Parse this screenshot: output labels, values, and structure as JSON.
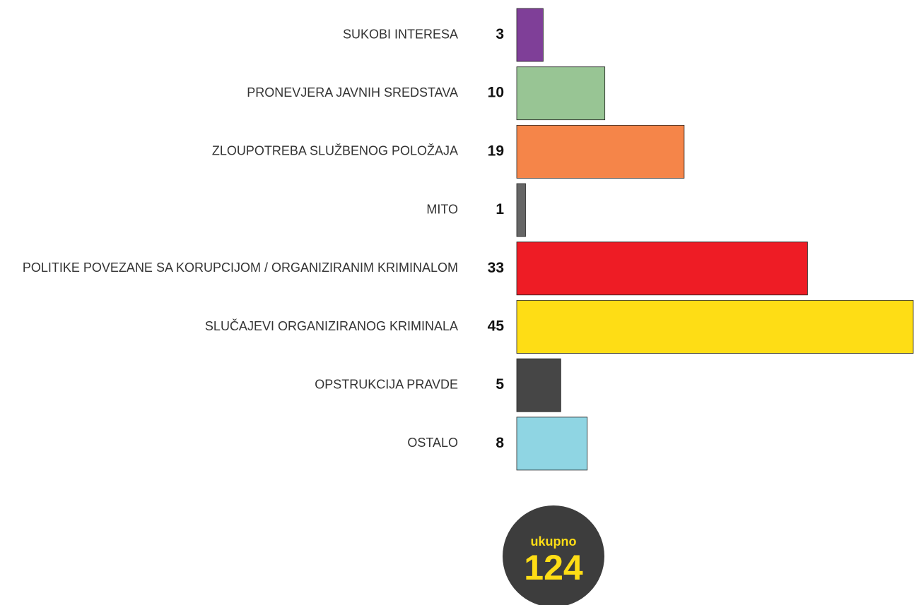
{
  "chart_data": {
    "type": "bar",
    "orientation": "horizontal",
    "categories": [
      "SUKOBI INTERESA",
      "PRONEVJERA JAVNIH SREDSTAVA",
      "ZLOUPOTREBA SLUŽBENOG POLOŽAJA",
      "MITO",
      "POLITIKE POVEZANE SA KORUPCIJOM / ORGANIZIRANIM KRIMINALOM",
      "SLUČAJEVI ORGANIZIRANOG KRIMINALA",
      "OPSTRUKCIJA PRAVDE",
      "OSTALO"
    ],
    "values": [
      3,
      10,
      19,
      1,
      33,
      45,
      5,
      8
    ],
    "colors": [
      "#7f3f98",
      "#98c594",
      "#f58549",
      "#666666",
      "#ee1c25",
      "#fedd15",
      "#464646",
      "#8fd5e3"
    ],
    "total_label": "ukupno",
    "total": 124
  }
}
